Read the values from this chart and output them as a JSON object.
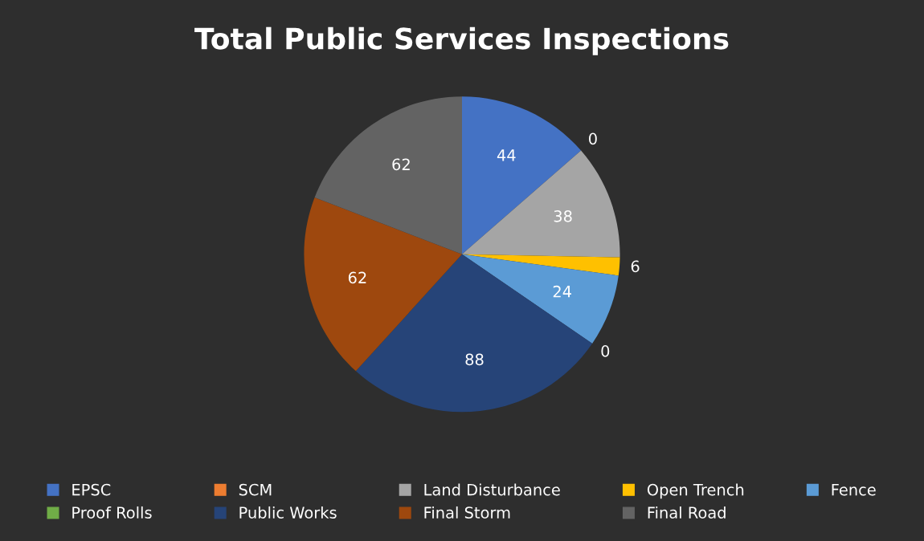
{
  "chart_data": {
    "type": "pie",
    "title": "Total Public Services Inspections",
    "categories": [
      "EPSC",
      "SCM",
      "Land Disturbance",
      "Open Trench",
      "Fence",
      "Proof Rolls",
      "Public Works",
      "Final Storm",
      "Final Road"
    ],
    "values": [
      44,
      0,
      38,
      6,
      24,
      0,
      88,
      62,
      62
    ],
    "colors": [
      "#4472c4",
      "#ed7d31",
      "#a5a5a5",
      "#ffc000",
      "#5b9bd5",
      "#70ad47",
      "#264478",
      "#9e480e",
      "#636363"
    ],
    "value_labels": [
      "44",
      "0",
      "38",
      "6",
      "24",
      "0",
      "88",
      "62",
      "62"
    ],
    "legend": "bottom"
  }
}
